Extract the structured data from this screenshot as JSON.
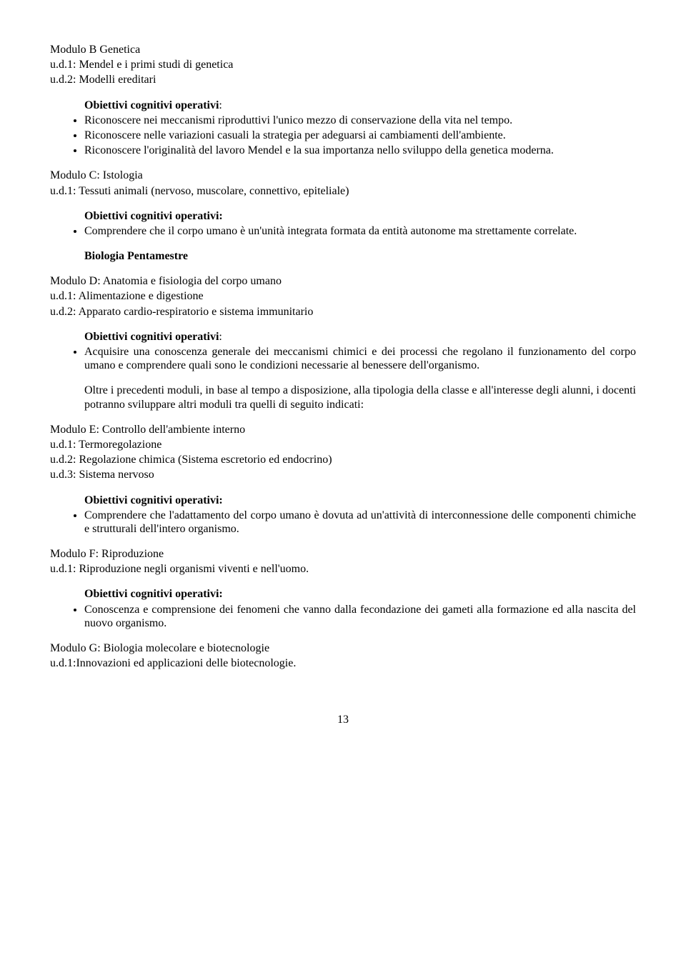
{
  "modB": {
    "title": "Modulo B Genetica",
    "ud1": "u.d.1: Mendel e i primi studi di genetica",
    "ud2": "u.d.2: Modelli ereditari",
    "obj_heading": "Obiettivi cognitivi operativi",
    "colon": ":",
    "b1": "Riconoscere nei meccanismi riproduttivi l'unico mezzo di conservazione della vita nel tempo.",
    "b2": "Riconoscere nelle variazioni casuali la strategia per adeguarsi ai cambiamenti dell'ambiente.",
    "b3": "Riconoscere l'originalità del lavoro Mendel e la sua importanza nello sviluppo della genetica moderna."
  },
  "modC": {
    "title": "Modulo C: Istologia",
    "ud1": "u.d.1: Tessuti animali (nervoso, muscolare, connettivo, epiteliale)",
    "obj_heading": "Obiettivi cognitivi operativi:",
    "b1": "Comprendere che il corpo umano è un'unità integrata formata da entità autonome ma strettamente correlate."
  },
  "pent": {
    "title": "Biologia Pentamestre"
  },
  "modD": {
    "title": "Modulo D: Anatomia e fisiologia del corpo umano",
    "ud1": "u.d.1: Alimentazione e digestione",
    "ud2": "u.d.2: Apparato cardio-respiratorio e sistema immunitario",
    "obj_heading": "Obiettivi cognitivi operativi",
    "colon": ":",
    "b1": "Acquisire una conoscenza generale dei meccanismi chimici e dei processi che regolano il funzionamento del corpo umano e comprendere quali sono le condizioni necessarie al benessere dell'organismo.",
    "note": "Oltre i precedenti moduli, in base al tempo a disposizione,  alla tipologia della classe e all'interesse degli alunni, i docenti potranno sviluppare altri moduli tra quelli di seguito indicati:"
  },
  "modE": {
    "title": "Modulo E: Controllo dell'ambiente interno",
    "ud1": "u.d.1: Termoregolazione",
    "ud2": "u.d.2: Regolazione chimica (Sistema escretorio ed endocrino)",
    "ud3": "u.d.3: Sistema nervoso",
    "obj_heading": "Obiettivi cognitivi operativi:",
    "b1": "Comprendere che l'adattamento del corpo umano è dovuta ad un'attività di interconnessione delle componenti chimiche e strutturali dell'intero organismo."
  },
  "modF": {
    "title": "Modulo F: Riproduzione",
    "ud1": "u.d.1: Riproduzione negli organismi viventi e nell'uomo.",
    "obj_heading": "Obiettivi cognitivi operativi:",
    "b1": "Conoscenza e comprensione dei fenomeni che vanno dalla fecondazione dei gameti alla formazione ed alla nascita del nuovo organismo."
  },
  "modG": {
    "title": "Modulo G: Biologia molecolare e biotecnologie",
    "ud1": "u.d.1:Innovazioni ed applicazioni delle biotecnologie."
  },
  "page": "13"
}
